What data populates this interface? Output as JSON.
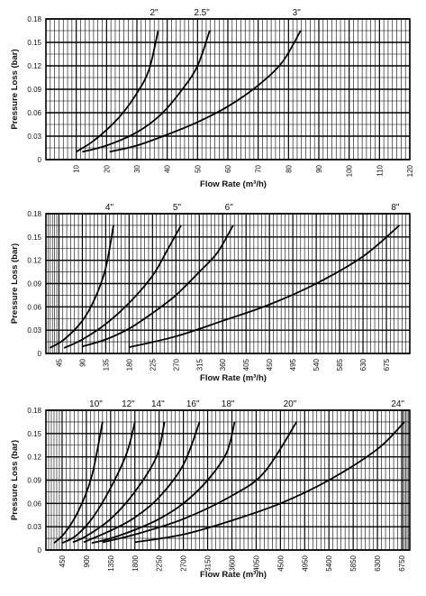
{
  "chart_data": [
    {
      "type": "line",
      "xlabel": "Flow Rate (m³/h)",
      "ylabel": "Pressure Loss (bar)",
      "xlim": [
        0,
        120
      ],
      "ylim": [
        0,
        0.18
      ],
      "x_ticks": [
        "10",
        "20",
        "30",
        "40",
        "50",
        "60",
        "70",
        "80",
        "90",
        "100",
        "110",
        "120"
      ],
      "y_ticks": [
        "0",
        "0.03",
        "0.06",
        "0.09",
        "0.12",
        "0.15",
        "0.18"
      ],
      "grid": true,
      "series": [
        {
          "name": "2\"",
          "points": [
            [
              10,
              0.01
            ],
            [
              15,
              0.022
            ],
            [
              20,
              0.038
            ],
            [
              25,
              0.058
            ],
            [
              30,
              0.085
            ],
            [
              34,
              0.115
            ],
            [
              37,
              0.165
            ]
          ]
        },
        {
          "name": "2.5\"",
          "points": [
            [
              12,
              0.01
            ],
            [
              20,
              0.018
            ],
            [
              30,
              0.035
            ],
            [
              38,
              0.058
            ],
            [
              45,
              0.09
            ],
            [
              50,
              0.12
            ],
            [
              54,
              0.165
            ]
          ]
        },
        {
          "name": "3\"",
          "points": [
            [
              21,
              0.01
            ],
            [
              30,
              0.018
            ],
            [
              40,
              0.032
            ],
            [
              50,
              0.048
            ],
            [
              60,
              0.068
            ],
            [
              70,
              0.095
            ],
            [
              78,
              0.125
            ],
            [
              84,
              0.165
            ]
          ]
        }
      ]
    },
    {
      "type": "line",
      "xlabel": "Flow Rate (m³/h)",
      "ylabel": "Pressure Loss (bar)",
      "xlim": [
        20,
        720
      ],
      "ylim": [
        0,
        0.18
      ],
      "x_ticks": [
        "45",
        "90",
        "135",
        "180",
        "225",
        "270",
        "315",
        "360",
        "405",
        "450",
        "495",
        "540",
        "585",
        "630",
        "675"
      ],
      "y_ticks": [
        "0",
        "0.03",
        "0.06",
        "0.09",
        "0.12",
        "0.15",
        "0.18"
      ],
      "grid": true,
      "series": [
        {
          "name": "4\"",
          "points": [
            [
              27,
              0.007
            ],
            [
              55,
              0.018
            ],
            [
              90,
              0.042
            ],
            [
              115,
              0.072
            ],
            [
              135,
              0.11
            ],
            [
              150,
              0.165
            ]
          ]
        },
        {
          "name": "5\"",
          "points": [
            [
              55,
              0.007
            ],
            [
              90,
              0.018
            ],
            [
              135,
              0.038
            ],
            [
              180,
              0.065
            ],
            [
              225,
              0.1
            ],
            [
              255,
              0.135
            ],
            [
              280,
              0.165
            ]
          ]
        },
        {
          "name": "6\"",
          "points": [
            [
              90,
              0.009
            ],
            [
              135,
              0.018
            ],
            [
              180,
              0.032
            ],
            [
              225,
              0.052
            ],
            [
              270,
              0.075
            ],
            [
              315,
              0.105
            ],
            [
              350,
              0.13
            ],
            [
              380,
              0.165
            ]
          ]
        },
        {
          "name": "8\"",
          "points": [
            [
              180,
              0.008
            ],
            [
              270,
              0.022
            ],
            [
              360,
              0.042
            ],
            [
              450,
              0.063
            ],
            [
              540,
              0.09
            ],
            [
              630,
              0.125
            ],
            [
              700,
              0.165
            ]
          ]
        }
      ]
    },
    {
      "type": "line",
      "xlabel": "Flow Rate (m³/h)",
      "ylabel": "Pressure Loss (bar)",
      "xlim": [
        150,
        6900
      ],
      "ylim": [
        0,
        0.18
      ],
      "x_ticks": [
        "450",
        "900",
        "1350",
        "1800",
        "2250",
        "2700",
        "3150",
        "3600",
        "4050",
        "4500",
        "4950",
        "5400",
        "5850",
        "6300",
        "6750"
      ],
      "y_ticks": [
        "0",
        "0.03",
        "0.06",
        "0.09",
        "0.12",
        "0.15",
        "0.18"
      ],
      "grid": true,
      "series": [
        {
          "name": "10\"",
          "points": [
            [
              300,
              0.009
            ],
            [
              500,
              0.022
            ],
            [
              750,
              0.05
            ],
            [
              1000,
              0.095
            ],
            [
              1200,
              0.165
            ]
          ]
        },
        {
          "name": "12\"",
          "points": [
            [
              450,
              0.009
            ],
            [
              700,
              0.018
            ],
            [
              1000,
              0.04
            ],
            [
              1350,
              0.08
            ],
            [
              1650,
              0.125
            ],
            [
              1800,
              0.165
            ]
          ]
        },
        {
          "name": "14\"",
          "points": [
            [
              650,
              0.01
            ],
            [
              900,
              0.018
            ],
            [
              1350,
              0.04
            ],
            [
              1800,
              0.075
            ],
            [
              2200,
              0.12
            ],
            [
              2350,
              0.165
            ]
          ]
        },
        {
          "name": "16\"",
          "points": [
            [
              850,
              0.01
            ],
            [
              1350,
              0.025
            ],
            [
              1800,
              0.042
            ],
            [
              2250,
              0.068
            ],
            [
              2700,
              0.11
            ],
            [
              3000,
              0.165
            ]
          ]
        },
        {
          "name": "18\"",
          "points": [
            [
              1000,
              0.009
            ],
            [
              1350,
              0.015
            ],
            [
              1800,
              0.026
            ],
            [
              2250,
              0.04
            ],
            [
              2700,
              0.06
            ],
            [
              3150,
              0.09
            ],
            [
              3500,
              0.125
            ],
            [
              3650,
              0.165
            ]
          ]
        },
        {
          "name": "20\"",
          "points": [
            [
              1200,
              0.01
            ],
            [
              1800,
              0.02
            ],
            [
              2700,
              0.04
            ],
            [
              3600,
              0.07
            ],
            [
              4200,
              0.1
            ],
            [
              4800,
              0.165
            ]
          ]
        },
        {
          "name": "24\"",
          "points": [
            [
              1800,
              0.01
            ],
            [
              2700,
              0.02
            ],
            [
              3600,
              0.038
            ],
            [
              4500,
              0.06
            ],
            [
              5400,
              0.09
            ],
            [
              6300,
              0.13
            ],
            [
              6800,
              0.165
            ]
          ]
        }
      ]
    }
  ]
}
